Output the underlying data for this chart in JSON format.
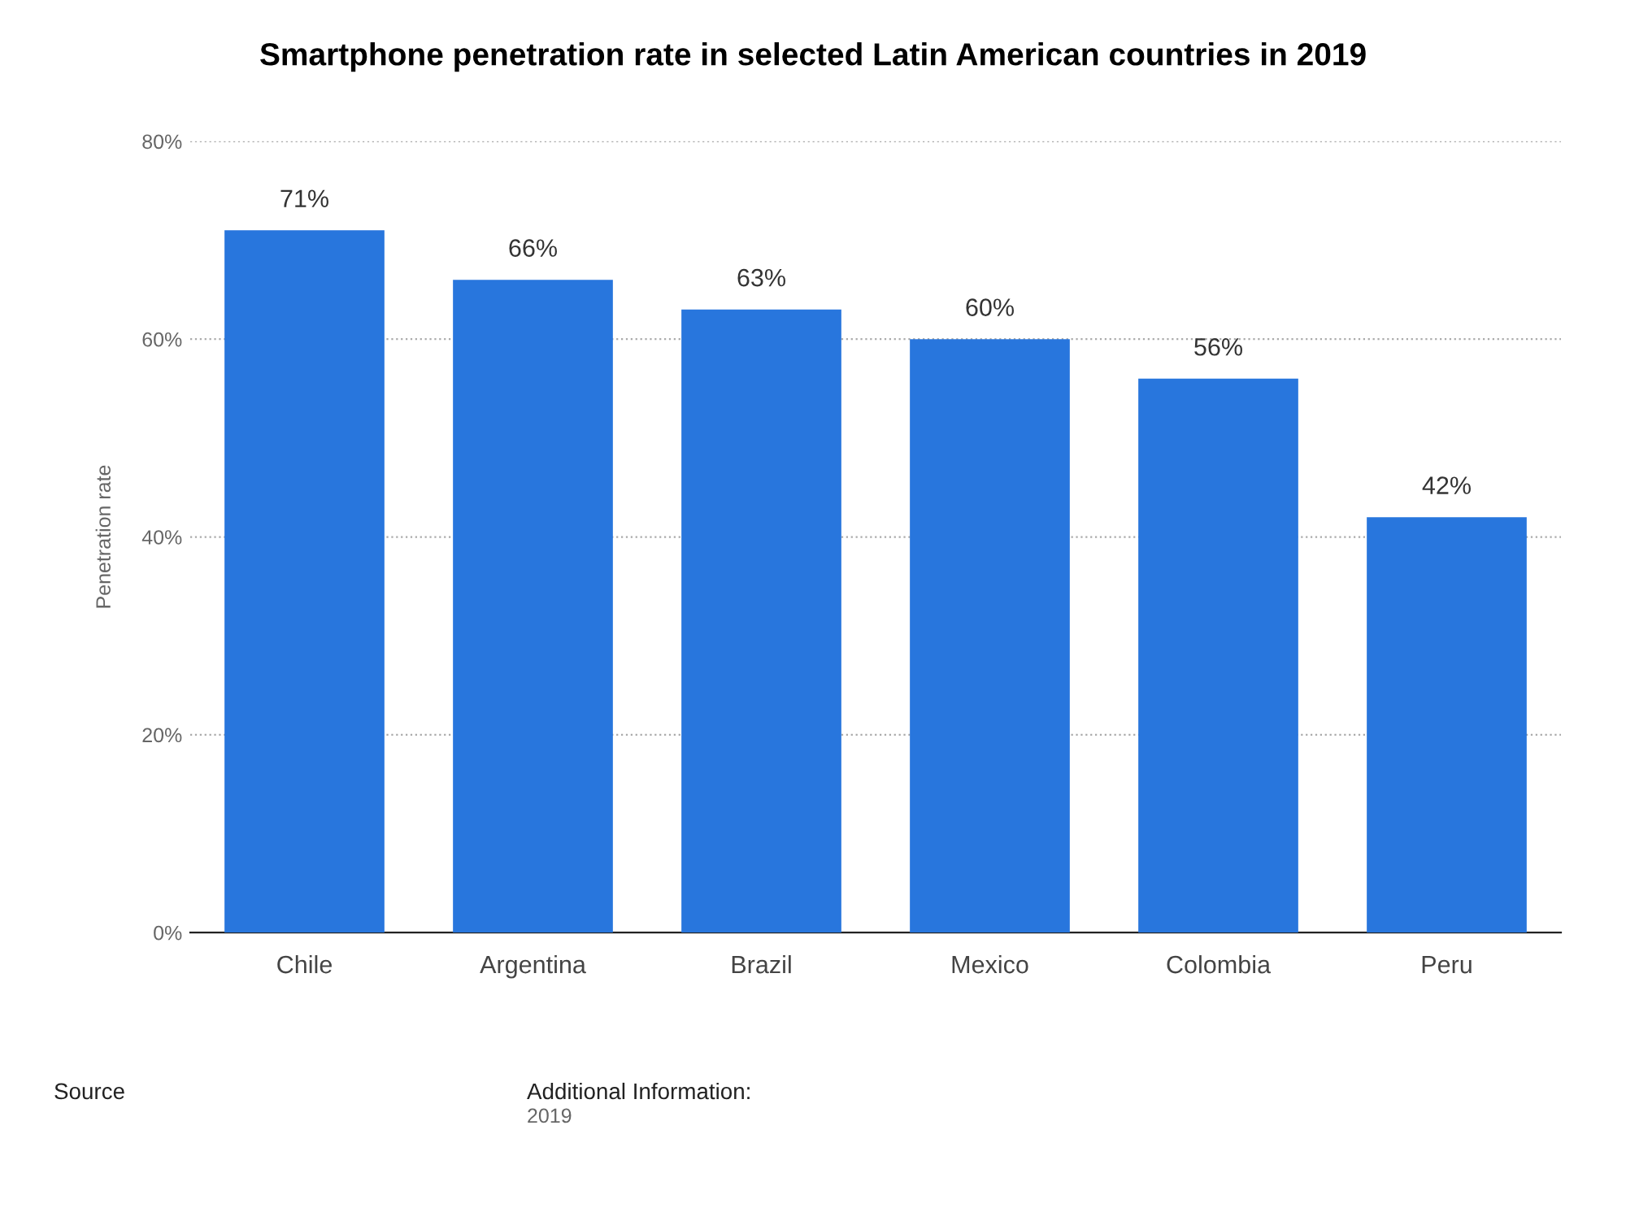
{
  "chart_data": {
    "type": "bar",
    "title": "Smartphone penetration rate in selected Latin American countries in 2019",
    "ylabel": "Penetration rate",
    "categories": [
      "Chile",
      "Argentina",
      "Brazil",
      "Mexico",
      "Colombia",
      "Peru"
    ],
    "values": [
      71,
      66,
      63,
      60,
      56,
      42
    ],
    "value_labels": [
      "71%",
      "66%",
      "63%",
      "60%",
      "56%",
      "42%"
    ],
    "color": "#2876dd",
    "ylim": [
      0,
      80
    ],
    "yticks": [
      {
        "value": 0,
        "label": "0%"
      },
      {
        "value": 20,
        "label": "20%"
      },
      {
        "value": 40,
        "label": "40%"
      },
      {
        "value": 60,
        "label": "60%"
      },
      {
        "value": 80,
        "label": "80%"
      }
    ],
    "grid": "y",
    "annotations": [
      "Source",
      "Additional Information:",
      "2019"
    ]
  }
}
